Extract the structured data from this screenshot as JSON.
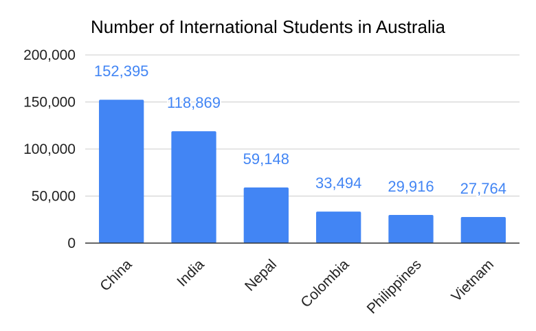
{
  "chart_data": {
    "type": "bar",
    "title": "Number of International Students in Australia",
    "xlabel": "",
    "ylabel": "",
    "categories": [
      "China",
      "India",
      "Nepal",
      "Colombia",
      "Philippines",
      "Vietnam"
    ],
    "values": [
      152395,
      118869,
      59148,
      33494,
      29916,
      27764
    ],
    "data_labels": [
      "152,395",
      "118,869",
      "59,148",
      "33,494",
      "29,916",
      "27,764"
    ],
    "ylim": [
      0,
      200000
    ],
    "yticks": [
      0,
      50000,
      100000,
      150000,
      200000
    ],
    "ytick_labels": [
      "0",
      "50,000",
      "100,000",
      "150,000",
      "200,000"
    ],
    "grid": true,
    "legend": "none",
    "colors": {
      "bar": "#4285F4",
      "data_label": "#4285F4",
      "grid": "#cccccc",
      "axis": "#333333"
    }
  }
}
